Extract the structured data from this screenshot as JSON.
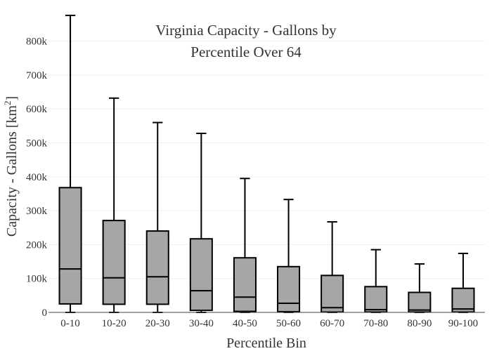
{
  "chart_data": {
    "type": "box",
    "title_line1": "Virginia Capacity - Gallons by",
    "title_line2": "Percentile Over 64",
    "xlabel": "Percentile Bin",
    "ylabel": "Capacity - Gallons  [km",
    "ylabel_sup": "2",
    "ylabel_close": "]",
    "ylim": [
      0,
      880000
    ],
    "yticks": [
      0,
      100000,
      200000,
      300000,
      400000,
      500000,
      600000,
      700000,
      800000
    ],
    "ytick_labels": [
      "0",
      "100k",
      "200k",
      "300k",
      "400k",
      "500k",
      "600k",
      "700k",
      "800k"
    ],
    "grid": true,
    "box_color": "#a6a6a6",
    "categories": [
      "0-10",
      "10-20",
      "20-30",
      "30-40",
      "40-50",
      "50-60",
      "60-70",
      "70-80",
      "80-90",
      "90-100"
    ],
    "boxes": [
      {
        "min": 0,
        "q1": 25000,
        "median": 128000,
        "q3": 368000,
        "max": 876000
      },
      {
        "min": 0,
        "q1": 24000,
        "median": 102000,
        "q3": 271000,
        "max": 632000
      },
      {
        "min": 0,
        "q1": 24000,
        "median": 105000,
        "q3": 240000,
        "max": 560000
      },
      {
        "min": 0,
        "q1": 6000,
        "median": 64000,
        "q3": 217000,
        "max": 528000
      },
      {
        "min": 0,
        "q1": 3000,
        "median": 45000,
        "q3": 161000,
        "max": 395000
      },
      {
        "min": 0,
        "q1": 2000,
        "median": 27000,
        "q3": 135000,
        "max": 333000
      },
      {
        "min": 0,
        "q1": 1000,
        "median": 14000,
        "q3": 109000,
        "max": 267000
      },
      {
        "min": 0,
        "q1": 1000,
        "median": 8000,
        "q3": 76000,
        "max": 185000
      },
      {
        "min": 0,
        "q1": 1000,
        "median": 7000,
        "q3": 59000,
        "max": 143000
      },
      {
        "min": 0,
        "q1": 1000,
        "median": 10000,
        "q3": 71000,
        "max": 174000
      }
    ]
  }
}
